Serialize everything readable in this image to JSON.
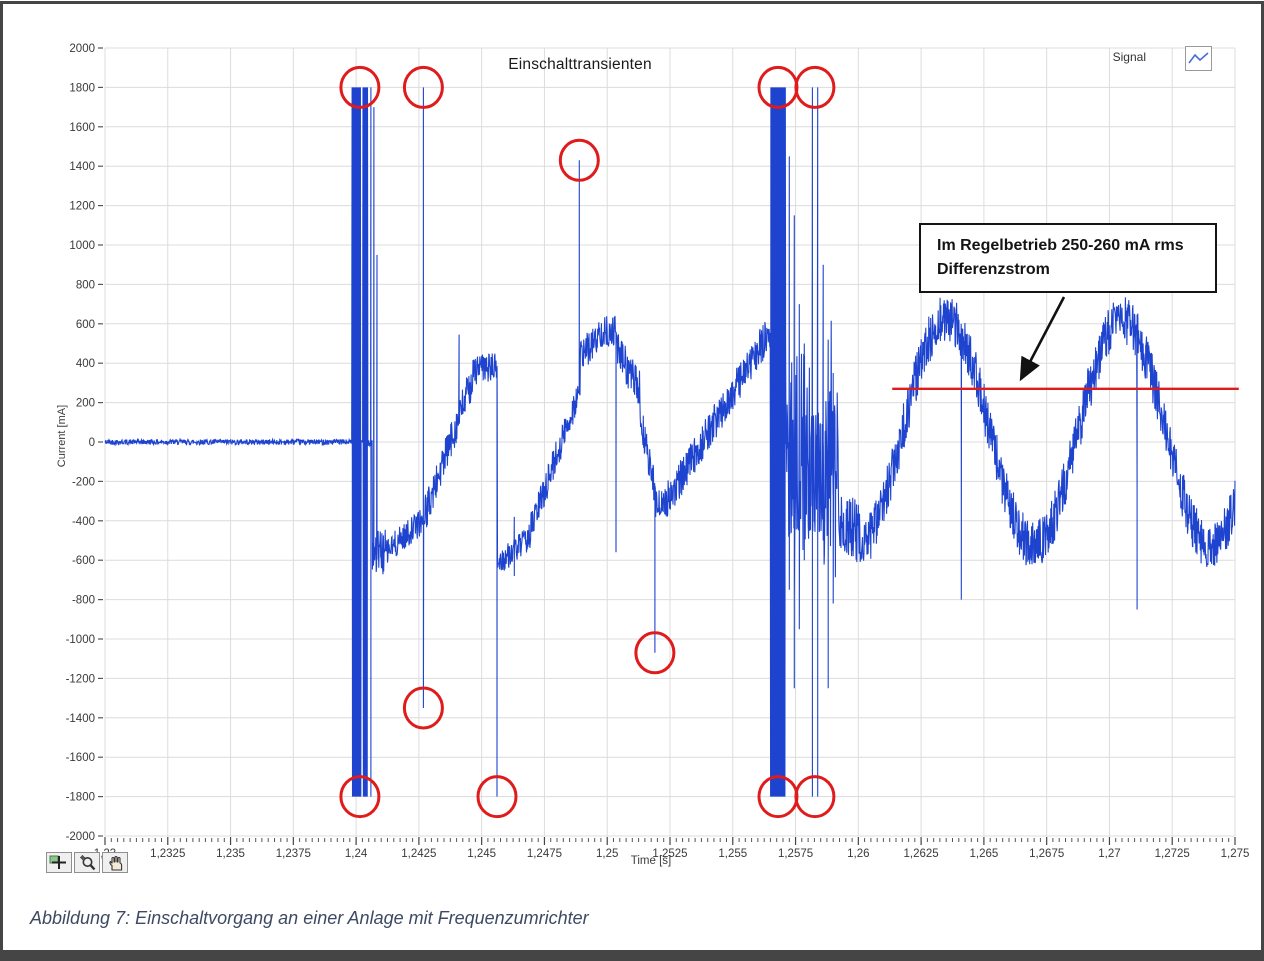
{
  "page": {
    "caption": "Abbildung 7: Einschaltvorgang an einer Anlage mit Frequenzumrichter"
  },
  "chart": {
    "title": "Einschalttransienten",
    "legend": {
      "label": "Signal",
      "icon": "waveform-zigzag-icon"
    },
    "x_label": "Time [s]",
    "y_label": "Current [mA]",
    "annotation": {
      "line1": "Im Regelbetrieb 250-260 mA rms",
      "line2": "Differenzstrom"
    },
    "toolbar_icons": [
      "crosshair-tool-icon",
      "zoom-tool-icon",
      "pan-hand-tool-icon"
    ]
  },
  "colors": {
    "signal": "#1e44cf",
    "highlight": "#e01b1b",
    "grid": "#dcdcdc",
    "axis_text": "#3a3a3a",
    "caption_color": "#3e4a63",
    "frame": "#454545"
  },
  "chart_data": {
    "type": "line",
    "title": "Einschalttransienten",
    "xlabel": "Time [s]",
    "ylabel": "Current [mA]",
    "series": [
      {
        "name": "Signal",
        "color": "#1e44cf"
      }
    ],
    "xlim": [
      1.23,
      1.275
    ],
    "ylim": [
      -2000,
      2000
    ],
    "x_tick_step": 0.0025,
    "y_tick_step": 200,
    "x_tick_labels": [
      "1,23",
      "1,2325",
      "1,235",
      "1,2375",
      "1,24",
      "1,2425",
      "1,245",
      "1,2475",
      "1,25",
      "1,2525",
      "1,255",
      "1,2575",
      "1,26",
      "1,2625",
      "1,265",
      "1,2675",
      "1,27",
      "1,2725",
      "1,275"
    ],
    "y_tick_labels": [
      "2000",
      "1800",
      "1600",
      "1400",
      "1200",
      "1000",
      "800",
      "600",
      "400",
      "200",
      "0",
      "-200",
      "-400",
      "-600",
      "-800",
      "-1000",
      "-1200",
      "-1400",
      "-1600",
      "-1800",
      "-2000"
    ],
    "grid": true,
    "legend_position": "top-right",
    "baseline_segments": [
      {
        "t0": 1.23,
        "t1": 1.23984,
        "type": "flat",
        "v0": 0,
        "v1": 0,
        "noise": 14
      },
      {
        "t0": 1.24064,
        "t1": 1.2412,
        "type": "flat",
        "v0": -560,
        "v1": -560,
        "noise": 120
      },
      {
        "t0": 1.2412,
        "t1": 1.24262,
        "type": "ramp",
        "v0": -560,
        "v1": -400,
        "noise": 70
      },
      {
        "t0": 1.24274,
        "t1": 1.2448,
        "type": "ramp",
        "v0": -370,
        "v1": 380,
        "noise": 95
      },
      {
        "t0": 1.2448,
        "t1": 1.2456,
        "type": "flat",
        "v0": 375,
        "v1": 375,
        "noise": 75
      },
      {
        "t0": 1.24562,
        "t1": 1.2468,
        "type": "ramp",
        "v0": -620,
        "v1": -500,
        "noise": 65
      },
      {
        "t0": 1.2468,
        "t1": 1.24886,
        "type": "ramp",
        "v0": -500,
        "v1": 250,
        "noise": 85
      },
      {
        "t0": 1.24892,
        "t1": 1.2497,
        "type": "ramp",
        "v0": 430,
        "v1": 540,
        "noise": 85
      },
      {
        "t0": 1.2497,
        "t1": 1.25032,
        "type": "flat",
        "v0": 560,
        "v1": 560,
        "noise": 80
      },
      {
        "t0": 1.25038,
        "t1": 1.2513,
        "type": "ramp",
        "v0": 470,
        "v1": 260,
        "noise": 100
      },
      {
        "t0": 1.2513,
        "t1": 1.25188,
        "type": "ramp",
        "v0": 130,
        "v1": -230,
        "noise": 90
      },
      {
        "t0": 1.25192,
        "t1": 1.2523,
        "type": "flat",
        "v0": -315,
        "v1": -315,
        "noise": 70
      },
      {
        "t0": 1.2523,
        "t1": 1.2563,
        "type": "ramp",
        "v0": -315,
        "v1": 525,
        "noise": 95
      },
      {
        "t0": 1.2563,
        "t1": 1.2565,
        "type": "flat",
        "v0": 520,
        "v1": 520,
        "noise": 60
      },
      {
        "t0": 1.25712,
        "t1": 1.2581,
        "type": "flat",
        "v0": -60,
        "v1": -60,
        "noise": 520,
        "spiky": true
      },
      {
        "t0": 1.2581,
        "t1": 1.25852,
        "type": "flat",
        "v0": -150,
        "v1": -150,
        "noise": 310,
        "spiky": true
      },
      {
        "t0": 1.25852,
        "t1": 1.2592,
        "type": "flat",
        "v0": -180,
        "v1": -180,
        "noise": 450,
        "spiky": true
      },
      {
        "t0": 1.2592,
        "t1": 1.2601,
        "type": "ramp",
        "v0": -380,
        "v1": -470,
        "noise": 160
      },
      {
        "t0": 1.2601,
        "t1": 1.2751,
        "type": "sine",
        "mean": 50,
        "amp": 575,
        "period": 0.007,
        "tpeak": 1.2635,
        "noise": 125
      }
    ],
    "clipped_bursts": [
      {
        "t0": 1.23984,
        "t1": 1.2402,
        "top": 1800,
        "bottom": -1800
      },
      {
        "t0": 1.24027,
        "t1": 1.24047,
        "top": 1800,
        "bottom": -1800
      },
      {
        "t0": 1.2565,
        "t1": 1.2571,
        "top": 1800,
        "bottom": -1800
      }
    ],
    "transient_spikes": [
      {
        "t": 1.24059,
        "top": 1800,
        "bottom": -1800
      },
      {
        "t": 1.24071,
        "top": 1700,
        "bottom": -500
      },
      {
        "t": 1.24083,
        "top": 950,
        "bottom": -350
      },
      {
        "t": 1.24268,
        "top": 1800,
        "bottom": -1350
      },
      {
        "t": 1.2441,
        "top": 545,
        "bottom": 200
      },
      {
        "t": 1.24561,
        "top": 380,
        "bottom": -1800
      },
      {
        "t": 1.2463,
        "top": -380,
        "bottom": -680
      },
      {
        "t": 1.24889,
        "top": 1430,
        "bottom": 250
      },
      {
        "t": 1.25035,
        "top": 560,
        "bottom": -560
      },
      {
        "t": 1.2519,
        "top": -230,
        "bottom": -1070
      },
      {
        "t": 1.25725,
        "top": 1450,
        "bottom": -750
      },
      {
        "t": 1.25745,
        "top": 1150,
        "bottom": -1250
      },
      {
        "t": 1.25765,
        "top": 700,
        "bottom": -950
      },
      {
        "t": 1.25785,
        "top": 500,
        "bottom": -600
      },
      {
        "t": 1.25817,
        "top": 1800,
        "bottom": -1800
      },
      {
        "t": 1.25838,
        "top": 1800,
        "bottom": -1800
      },
      {
        "t": 1.2586,
        "top": 900,
        "bottom": -500
      },
      {
        "t": 1.2588,
        "top": 520,
        "bottom": -1250
      },
      {
        "t": 1.259,
        "top": 350,
        "bottom": -820
      },
      {
        "t": 1.2641,
        "top": -300,
        "bottom": -800
      },
      {
        "t": 1.2711,
        "top": -250,
        "bottom": -850
      }
    ],
    "highlight_circles": [
      {
        "t": 1.24015,
        "value": 1800
      },
      {
        "t": 1.24268,
        "value": 1800
      },
      {
        "t": 1.24889,
        "value": 1430
      },
      {
        "t": 1.2568,
        "value": 1800
      },
      {
        "t": 1.25827,
        "value": 1800
      },
      {
        "t": 1.24015,
        "value": -1800
      },
      {
        "t": 1.24268,
        "value": -1350
      },
      {
        "t": 1.24561,
        "value": -1800
      },
      {
        "t": 1.2519,
        "value": -1070
      },
      {
        "t": 1.2568,
        "value": -1800
      },
      {
        "t": 1.25827,
        "value": -1800
      }
    ],
    "threshold_line": {
      "value": 270,
      "t0": 1.26135,
      "t1": 1.27515
    }
  }
}
